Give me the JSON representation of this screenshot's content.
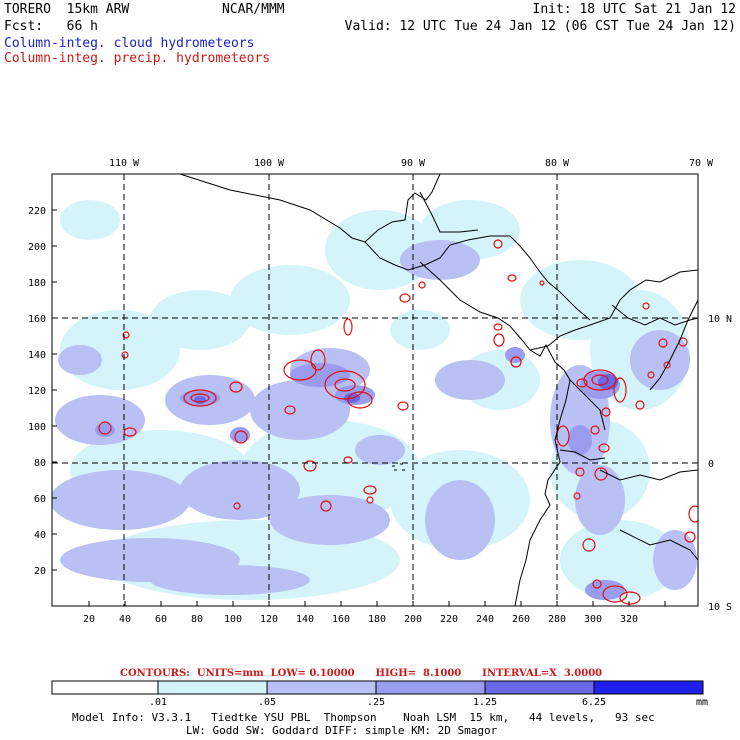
{
  "header": {
    "model": "TORERO  15km ARW",
    "org": "NCAR/MMM",
    "init": "Init: 18 UTC Sat 21 Jan 12",
    "fcst": "Fcst:   66 h",
    "valid": "Valid: 12 UTC Tue 24 Jan 12 (06 CST Tue 24 Jan 12)",
    "field1": "Column-integ. cloud hydrometeors",
    "field2": "Column-integ. precip. hydrometeors"
  },
  "map": {
    "lon_labels": [
      "110 W",
      "100 W",
      "90 W",
      "80 W",
      "70 W"
    ],
    "lat_labels": [
      "10 N",
      "0",
      "10 S"
    ],
    "x_ticks": [
      "20",
      "40",
      "60",
      "80",
      "100",
      "120",
      "140",
      "160",
      "180",
      "200",
      "220",
      "240",
      "260",
      "280",
      "300",
      "320"
    ],
    "y_ticks": [
      "20",
      "40",
      "60",
      "80",
      "100",
      "120",
      "140",
      "160",
      "180",
      "200",
      "220"
    ],
    "colors": {
      "frame": "#000000",
      "coast": "#000000",
      "grid": "#000000",
      "precip_contour": "#e01010"
    }
  },
  "contours_info": {
    "line": "CONTOURS:  UNITS=mm  LOW= 0.10000      HIGH=  8.1000      INTERVAL=X  3.0000"
  },
  "colorbar": {
    "labels": [
      ".01",
      ".05",
      ".25",
      "1.25",
      "6.25"
    ],
    "units": "mm",
    "colors": [
      "#ffffff",
      "#d4f4fa",
      "#b8c0f4",
      "#9a9cee",
      "#6868e8",
      "#3434ec",
      "#1010f0"
    ]
  },
  "footer": {
    "line1": "Model Info: V3.3.1   Tiedtke YSU PBL  Thompson    Noah LSM  15 km,   44 levels,   93 sec",
    "line2": "LW: Godd SW: Goddard DIFF: simple KM: 2D Smagor"
  }
}
